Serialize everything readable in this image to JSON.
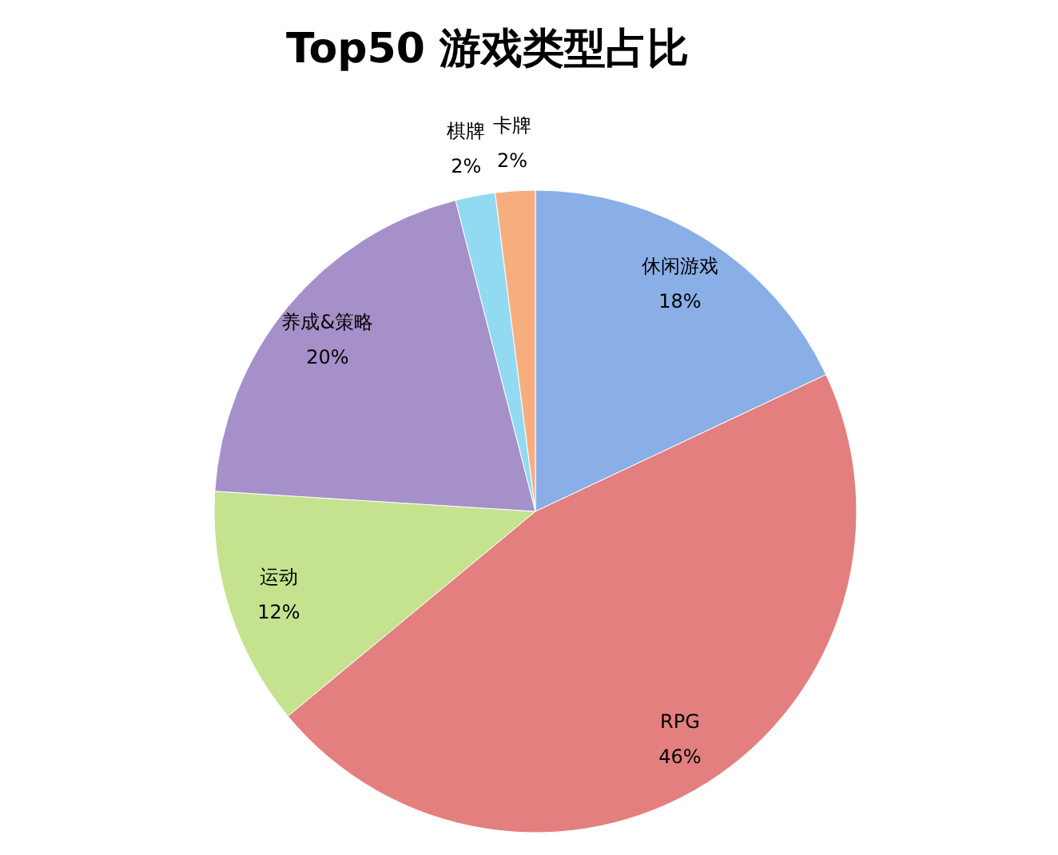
{
  "chart_data": {
    "type": "pie",
    "title": "Top50 游戏类型占比",
    "categories": [
      "休闲游戏",
      "RPG",
      "运动",
      "养成&策略",
      "棋牌",
      "卡牌"
    ],
    "values": [
      18,
      46,
      12,
      20,
      2,
      2
    ],
    "value_labels": [
      "18%",
      "46%",
      "12%",
      "20%",
      "2%",
      "2%"
    ],
    "colors": [
      "#8aaee6",
      "#e47f7f",
      "#c5e28e",
      "#a690c9",
      "#92d9f2",
      "#f7ae7f"
    ]
  }
}
